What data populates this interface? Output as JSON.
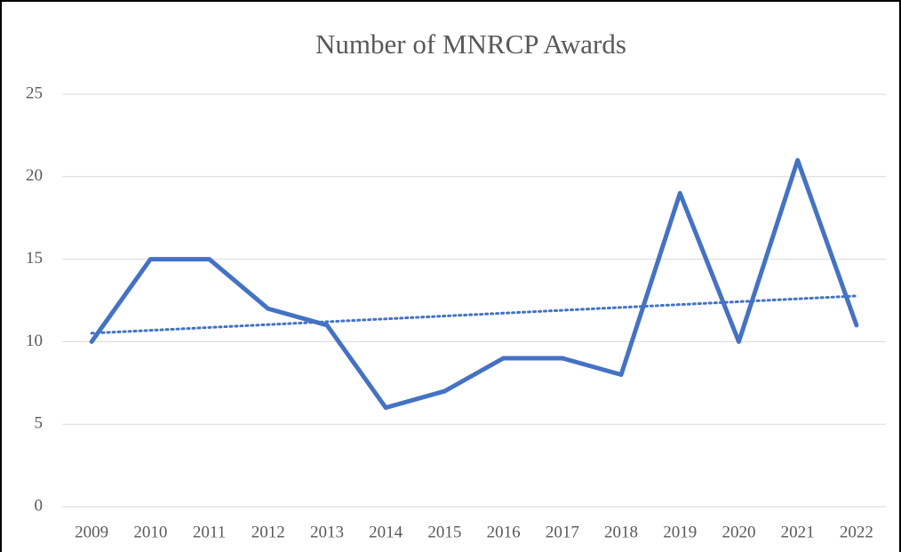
{
  "chart_data": {
    "type": "line",
    "title": "Number of MNRCP Awards",
    "categories": [
      "2009",
      "2010",
      "2011",
      "2012",
      "2013",
      "2014",
      "2015",
      "2016",
      "2017",
      "2018",
      "2019",
      "2020",
      "2021",
      "2022"
    ],
    "values": [
      10,
      15,
      15,
      12,
      11,
      6,
      7,
      9,
      9,
      8,
      19,
      10,
      21,
      11
    ],
    "color": "#4472c4",
    "ylim": [
      0,
      25
    ],
    "yticks": [
      0,
      5,
      10,
      15,
      20,
      25
    ],
    "grid": true,
    "trendline": "linear"
  }
}
